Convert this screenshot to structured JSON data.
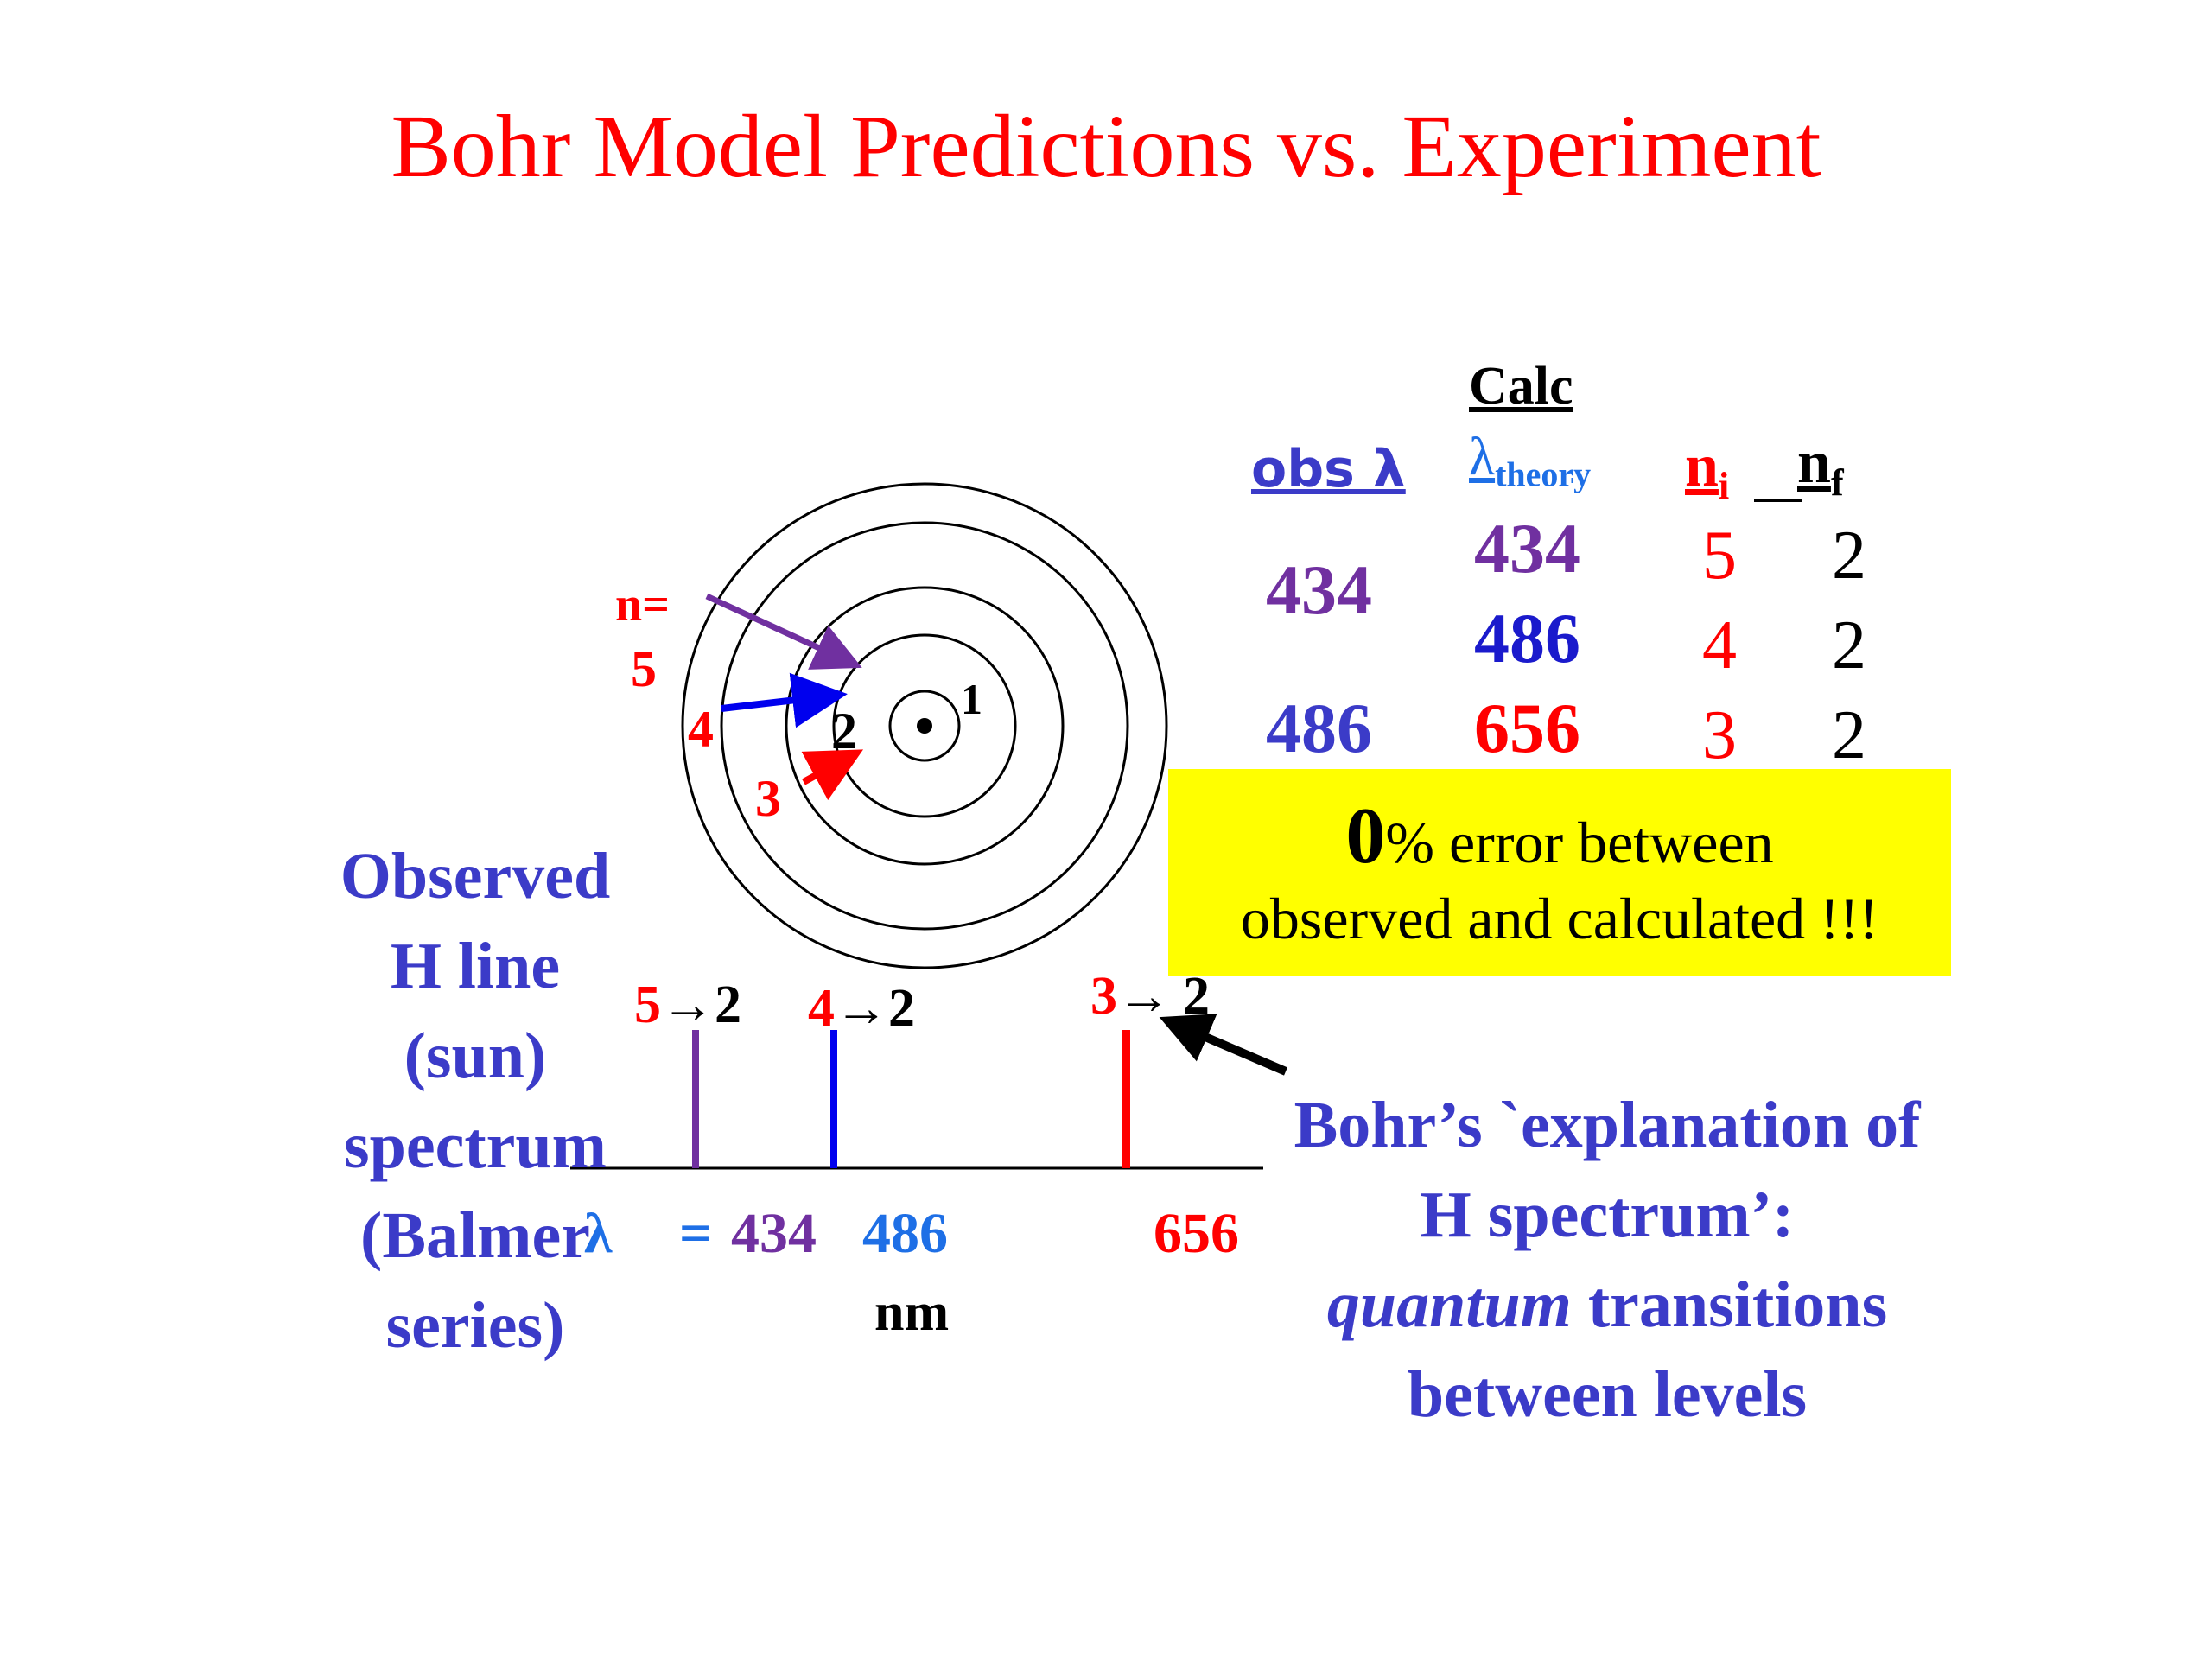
{
  "title": "Bohr Model Predictions vs. Experiment",
  "table": {
    "calc_header": "Calc",
    "obs_header": "obs λ",
    "theory_header_symbol": "λ",
    "theory_header_sub": "theory",
    "ni_header": "n",
    "ni_sub": "i",
    "nf_header": "n",
    "nf_sub": "f",
    "observed": [
      "434",
      "486"
    ],
    "rows": [
      {
        "theory": "434",
        "ni": "5",
        "nf": "2"
      },
      {
        "theory": "486",
        "ni": "4",
        "nf": "2"
      },
      {
        "theory": "656",
        "ni": "3",
        "nf": "2"
      }
    ]
  },
  "error_box": {
    "zero": "0",
    "line1_rest": "% error between",
    "line2": "observed and calculated !!!"
  },
  "atom": {
    "n_label": "n=",
    "n5": "5",
    "n4": "4",
    "n3": "3",
    "n2": "2",
    "n1": "1"
  },
  "spectrum": {
    "transitions": [
      {
        "from": "5",
        "arrow": "→",
        "to": "2"
      },
      {
        "from": "4",
        "arrow": "→",
        "to": "2"
      },
      {
        "from": "3",
        "arrow": "→",
        "to": "2"
      }
    ],
    "lambda_symbol": "λ",
    "equals": "=",
    "wavelengths": [
      "434",
      "486",
      "656"
    ],
    "unit": "nm"
  },
  "observed_label": "Observed H line (sun) spectrum (Balmer series)",
  "explanation": {
    "line1": "Bohr’s `explanation of H spectrum’:",
    "italic": "quantum",
    "rest": "transitions between levels"
  },
  "colors": {
    "title": "#ff0000",
    "n5": "#7030a0",
    "n4": "#0000ee",
    "n3": "#ff0000",
    "label": "#3b3bc8",
    "highlight": "#ffff00"
  }
}
